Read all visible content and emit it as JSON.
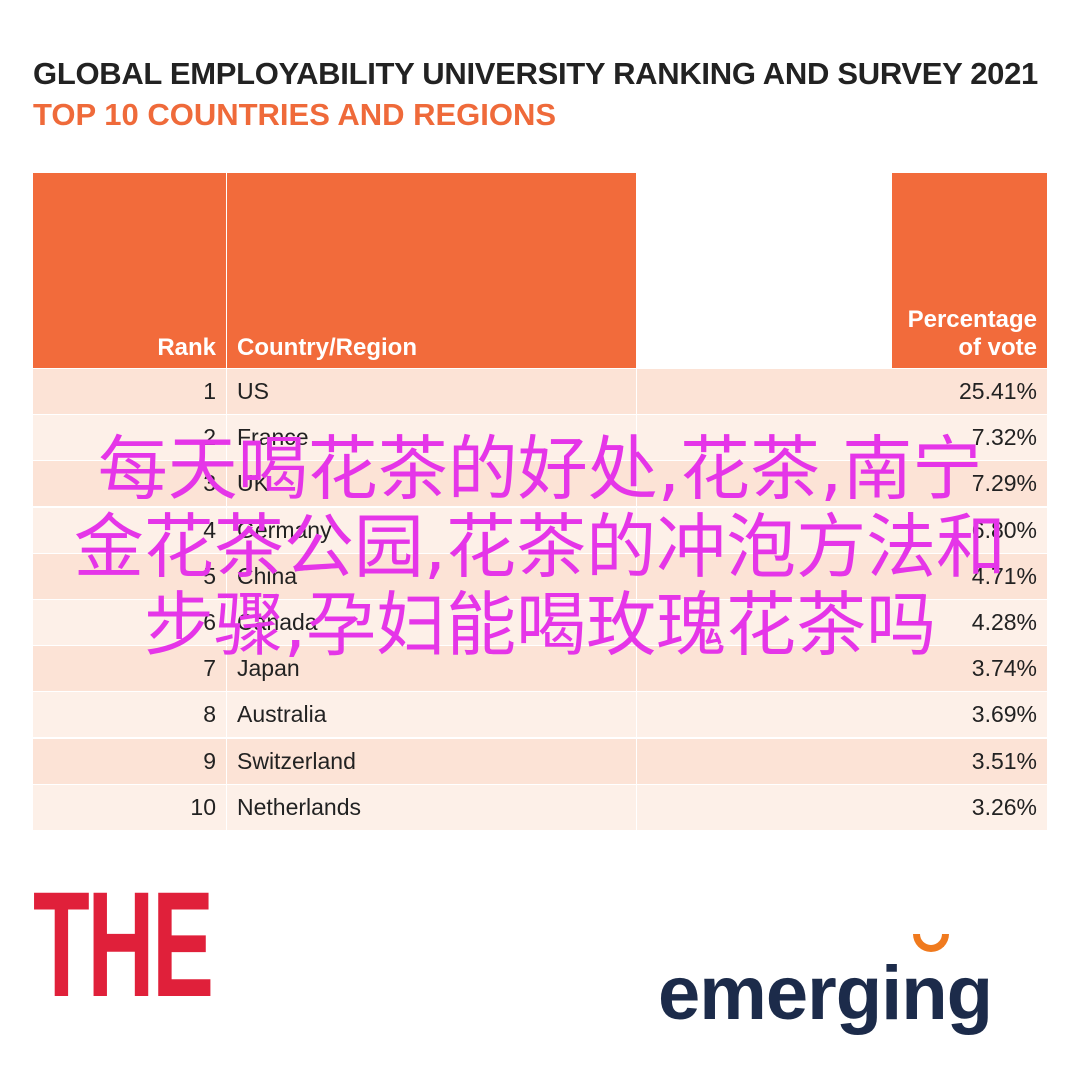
{
  "header": {
    "title": "GLOBAL EMPLOYABILITY UNIVERSITY RANKING AND SURVEY 2021",
    "subtitle": "TOP 10 COUNTRIES AND REGIONS"
  },
  "table": {
    "columns": [
      "Rank",
      "Country/Region",
      "Percentage of vote"
    ],
    "rows": [
      [
        1,
        "US",
        "25.41%"
      ],
      [
        2,
        "France",
        "7.32%"
      ],
      [
        3,
        "UK",
        "7.29%"
      ],
      [
        4,
        "Germany",
        "6.80%"
      ],
      [
        5,
        "China",
        "4.71%"
      ],
      [
        6,
        "Canada",
        "4.28%"
      ],
      [
        7,
        "Japan",
        "3.74%"
      ],
      [
        8,
        "Australia",
        "3.69%"
      ],
      [
        9,
        "Switzerland",
        "3.51%"
      ],
      [
        10,
        "Netherlands",
        "3.26%"
      ]
    ]
  },
  "overlay": {
    "lines": [
      "每天喝花茶的好处,花茶,南宁",
      "金花茶公园,花茶的冲泡方法和",
      "步骤,孕妇能喝玫瑰花茶吗"
    ]
  },
  "logos": {
    "left": "THE",
    "right": "emerging"
  }
}
